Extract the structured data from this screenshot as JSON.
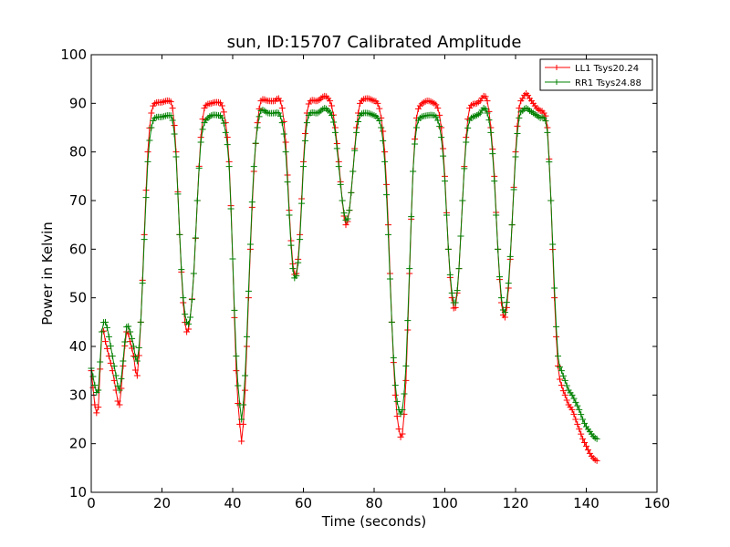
{
  "chart_data": {
    "type": "line",
    "title": "sun, ID:15707 Calibrated Amplitude",
    "xlabel": "Time (seconds)",
    "ylabel": "Power in Kelvin",
    "xlim": [
      0,
      160
    ],
    "ylim": [
      10,
      100
    ],
    "xticks": [
      "0",
      "20",
      "40",
      "60",
      "80",
      "100",
      "120",
      "140",
      "160"
    ],
    "yticks": [
      "10",
      "20",
      "30",
      "40",
      "50",
      "60",
      "70",
      "80",
      "90",
      "100"
    ],
    "grid": false,
    "legend_position": "top-right",
    "marker": "+",
    "series": [
      {
        "name": "LL1 Tsys20.24",
        "color": "#ff0000",
        "points": [
          [
            0,
            35
          ],
          [
            1,
            28
          ],
          [
            2,
            27.5
          ],
          [
            3,
            43
          ],
          [
            4,
            41
          ],
          [
            5,
            38
          ],
          [
            6,
            35
          ],
          [
            7,
            31
          ],
          [
            8,
            28
          ],
          [
            9,
            36
          ],
          [
            10,
            43
          ],
          [
            11,
            41
          ],
          [
            12,
            38
          ],
          [
            13,
            34
          ],
          [
            14,
            45
          ],
          [
            15,
            63
          ],
          [
            16,
            80
          ],
          [
            17,
            88
          ],
          [
            18,
            90
          ],
          [
            20,
            90.2
          ],
          [
            22,
            90.5
          ],
          [
            23,
            89
          ],
          [
            24,
            80
          ],
          [
            25,
            63
          ],
          [
            26,
            49
          ],
          [
            27,
            43
          ],
          [
            28,
            46
          ],
          [
            29,
            55
          ],
          [
            30,
            70
          ],
          [
            31,
            83
          ],
          [
            32,
            89
          ],
          [
            34,
            90
          ],
          [
            36,
            90.2
          ],
          [
            37,
            89.5
          ],
          [
            38,
            86
          ],
          [
            39,
            78
          ],
          [
            40,
            58
          ],
          [
            41,
            35
          ],
          [
            42,
            24
          ],
          [
            42.5,
            20.5
          ],
          [
            43,
            24
          ],
          [
            44,
            40
          ],
          [
            45,
            60
          ],
          [
            46,
            76
          ],
          [
            47,
            86
          ],
          [
            48,
            90.5
          ],
          [
            50,
            90.5
          ],
          [
            52,
            90.5
          ],
          [
            53,
            91
          ],
          [
            54,
            89
          ],
          [
            55,
            82
          ],
          [
            56,
            68
          ],
          [
            57,
            57
          ],
          [
            58,
            55
          ],
          [
            59,
            63
          ],
          [
            60,
            78
          ],
          [
            61,
            88
          ],
          [
            62,
            90.5
          ],
          [
            64,
            90.5
          ],
          [
            66,
            91.5
          ],
          [
            67,
            91
          ],
          [
            68,
            89.5
          ],
          [
            69,
            85
          ],
          [
            70,
            78
          ],
          [
            71,
            70
          ],
          [
            72,
            65
          ],
          [
            73,
            68
          ],
          [
            74,
            76
          ],
          [
            75,
            85
          ],
          [
            76,
            90
          ],
          [
            78,
            91
          ],
          [
            80,
            90.5
          ],
          [
            81,
            90
          ],
          [
            82,
            87
          ],
          [
            83,
            80
          ],
          [
            84,
            65
          ],
          [
            85,
            45
          ],
          [
            86,
            30
          ],
          [
            87,
            23
          ],
          [
            88,
            22
          ],
          [
            89,
            33
          ],
          [
            90,
            55
          ],
          [
            91,
            76
          ],
          [
            92,
            87
          ],
          [
            93,
            89.5
          ],
          [
            95,
            90.5
          ],
          [
            97,
            90
          ],
          [
            98,
            89
          ],
          [
            99,
            85
          ],
          [
            100,
            75
          ],
          [
            101,
            60
          ],
          [
            102,
            50
          ],
          [
            103,
            48
          ],
          [
            104,
            56
          ],
          [
            105,
            70
          ],
          [
            106,
            83
          ],
          [
            107,
            89
          ],
          [
            109,
            90
          ],
          [
            110,
            90.5
          ],
          [
            111,
            91.5
          ],
          [
            112,
            90.5
          ],
          [
            113,
            85
          ],
          [
            114,
            75
          ],
          [
            115,
            60
          ],
          [
            116,
            49
          ],
          [
            117,
            46
          ],
          [
            118,
            52
          ],
          [
            119,
            65
          ],
          [
            120,
            80
          ],
          [
            121,
            89
          ],
          [
            122,
            91
          ],
          [
            123,
            92
          ],
          [
            124,
            91
          ],
          [
            125,
            90
          ],
          [
            126,
            89
          ],
          [
            127,
            88.5
          ],
          [
            128,
            88
          ],
          [
            129,
            85
          ],
          [
            130,
            70
          ],
          [
            131,
            50
          ],
          [
            132,
            36
          ],
          [
            133,
            32
          ],
          [
            134,
            30
          ],
          [
            135,
            28
          ],
          [
            136,
            27
          ],
          [
            137,
            25
          ],
          [
            138,
            23
          ],
          [
            139,
            21
          ],
          [
            140,
            19.5
          ],
          [
            141,
            18
          ],
          [
            142,
            17
          ],
          [
            143,
            16.5
          ]
        ]
      },
      {
        "name": "RR1 Tsys24.88",
        "color": "#008000",
        "points": [
          [
            0,
            35.5
          ],
          [
            1,
            32
          ],
          [
            2,
            31
          ],
          [
            3,
            43
          ],
          [
            4,
            45
          ],
          [
            5,
            42
          ],
          [
            6,
            38
          ],
          [
            7,
            34
          ],
          [
            8,
            31
          ],
          [
            9,
            37
          ],
          [
            10,
            44
          ],
          [
            11,
            43
          ],
          [
            12,
            40
          ],
          [
            13,
            37
          ],
          [
            14,
            45
          ],
          [
            15,
            62
          ],
          [
            16,
            78
          ],
          [
            17,
            85
          ],
          [
            18,
            87
          ],
          [
            20,
            87.2
          ],
          [
            22,
            87.5
          ],
          [
            23,
            86.5
          ],
          [
            24,
            79
          ],
          [
            25,
            63
          ],
          [
            26,
            50
          ],
          [
            27,
            45
          ],
          [
            28,
            46
          ],
          [
            29,
            55
          ],
          [
            30,
            70
          ],
          [
            31,
            82
          ],
          [
            32,
            86
          ],
          [
            34,
            87.5
          ],
          [
            36,
            87.5
          ],
          [
            37,
            87
          ],
          [
            38,
            84
          ],
          [
            39,
            77
          ],
          [
            40,
            58
          ],
          [
            41,
            38
          ],
          [
            42,
            28
          ],
          [
            42.5,
            25
          ],
          [
            43,
            28
          ],
          [
            44,
            42
          ],
          [
            45,
            61
          ],
          [
            46,
            77
          ],
          [
            47,
            85
          ],
          [
            48,
            88.5
          ],
          [
            50,
            88
          ],
          [
            52,
            88
          ],
          [
            53,
            88
          ],
          [
            54,
            86
          ],
          [
            55,
            80
          ],
          [
            56,
            67
          ],
          [
            57,
            56
          ],
          [
            58,
            54.5
          ],
          [
            59,
            62
          ],
          [
            60,
            77
          ],
          [
            61,
            86
          ],
          [
            62,
            88
          ],
          [
            64,
            88
          ],
          [
            66,
            89
          ],
          [
            67,
            88.5
          ],
          [
            68,
            87.5
          ],
          [
            69,
            84
          ],
          [
            70,
            77
          ],
          [
            71,
            70
          ],
          [
            72,
            66
          ],
          [
            73,
            68
          ],
          [
            74,
            76
          ],
          [
            75,
            84
          ],
          [
            76,
            87.5
          ],
          [
            78,
            88
          ],
          [
            80,
            87.5
          ],
          [
            81,
            87
          ],
          [
            82,
            85
          ],
          [
            83,
            78
          ],
          [
            84,
            63
          ],
          [
            85,
            45
          ],
          [
            86,
            32
          ],
          [
            87,
            27
          ],
          [
            88,
            27
          ],
          [
            89,
            36
          ],
          [
            90,
            56
          ],
          [
            91,
            76
          ],
          [
            92,
            85
          ],
          [
            93,
            87
          ],
          [
            95,
            87.5
          ],
          [
            97,
            87.5
          ],
          [
            98,
            86.5
          ],
          [
            99,
            83
          ],
          [
            100,
            74
          ],
          [
            101,
            60
          ],
          [
            102,
            51
          ],
          [
            103,
            49
          ],
          [
            104,
            56
          ],
          [
            105,
            70
          ],
          [
            106,
            82
          ],
          [
            107,
            86.5
          ],
          [
            109,
            87.5
          ],
          [
            110,
            88
          ],
          [
            111,
            89
          ],
          [
            112,
            88
          ],
          [
            113,
            84
          ],
          [
            114,
            74
          ],
          [
            115,
            60
          ],
          [
            116,
            50
          ],
          [
            117,
            47
          ],
          [
            118,
            53
          ],
          [
            119,
            65
          ],
          [
            120,
            79
          ],
          [
            121,
            87
          ],
          [
            122,
            88.5
          ],
          [
            123,
            89
          ],
          [
            124,
            88.5
          ],
          [
            125,
            88
          ],
          [
            126,
            87.5
          ],
          [
            127,
            87
          ],
          [
            128,
            87
          ],
          [
            129,
            84
          ],
          [
            130,
            70
          ],
          [
            131,
            52
          ],
          [
            132,
            38
          ],
          [
            133,
            35
          ],
          [
            134,
            33
          ],
          [
            135,
            31
          ],
          [
            136,
            30
          ],
          [
            137,
            28.5
          ],
          [
            138,
            27
          ],
          [
            139,
            25
          ],
          [
            140,
            23.5
          ],
          [
            141,
            22.5
          ],
          [
            142,
            21.5
          ],
          [
            143,
            21
          ]
        ]
      }
    ]
  }
}
